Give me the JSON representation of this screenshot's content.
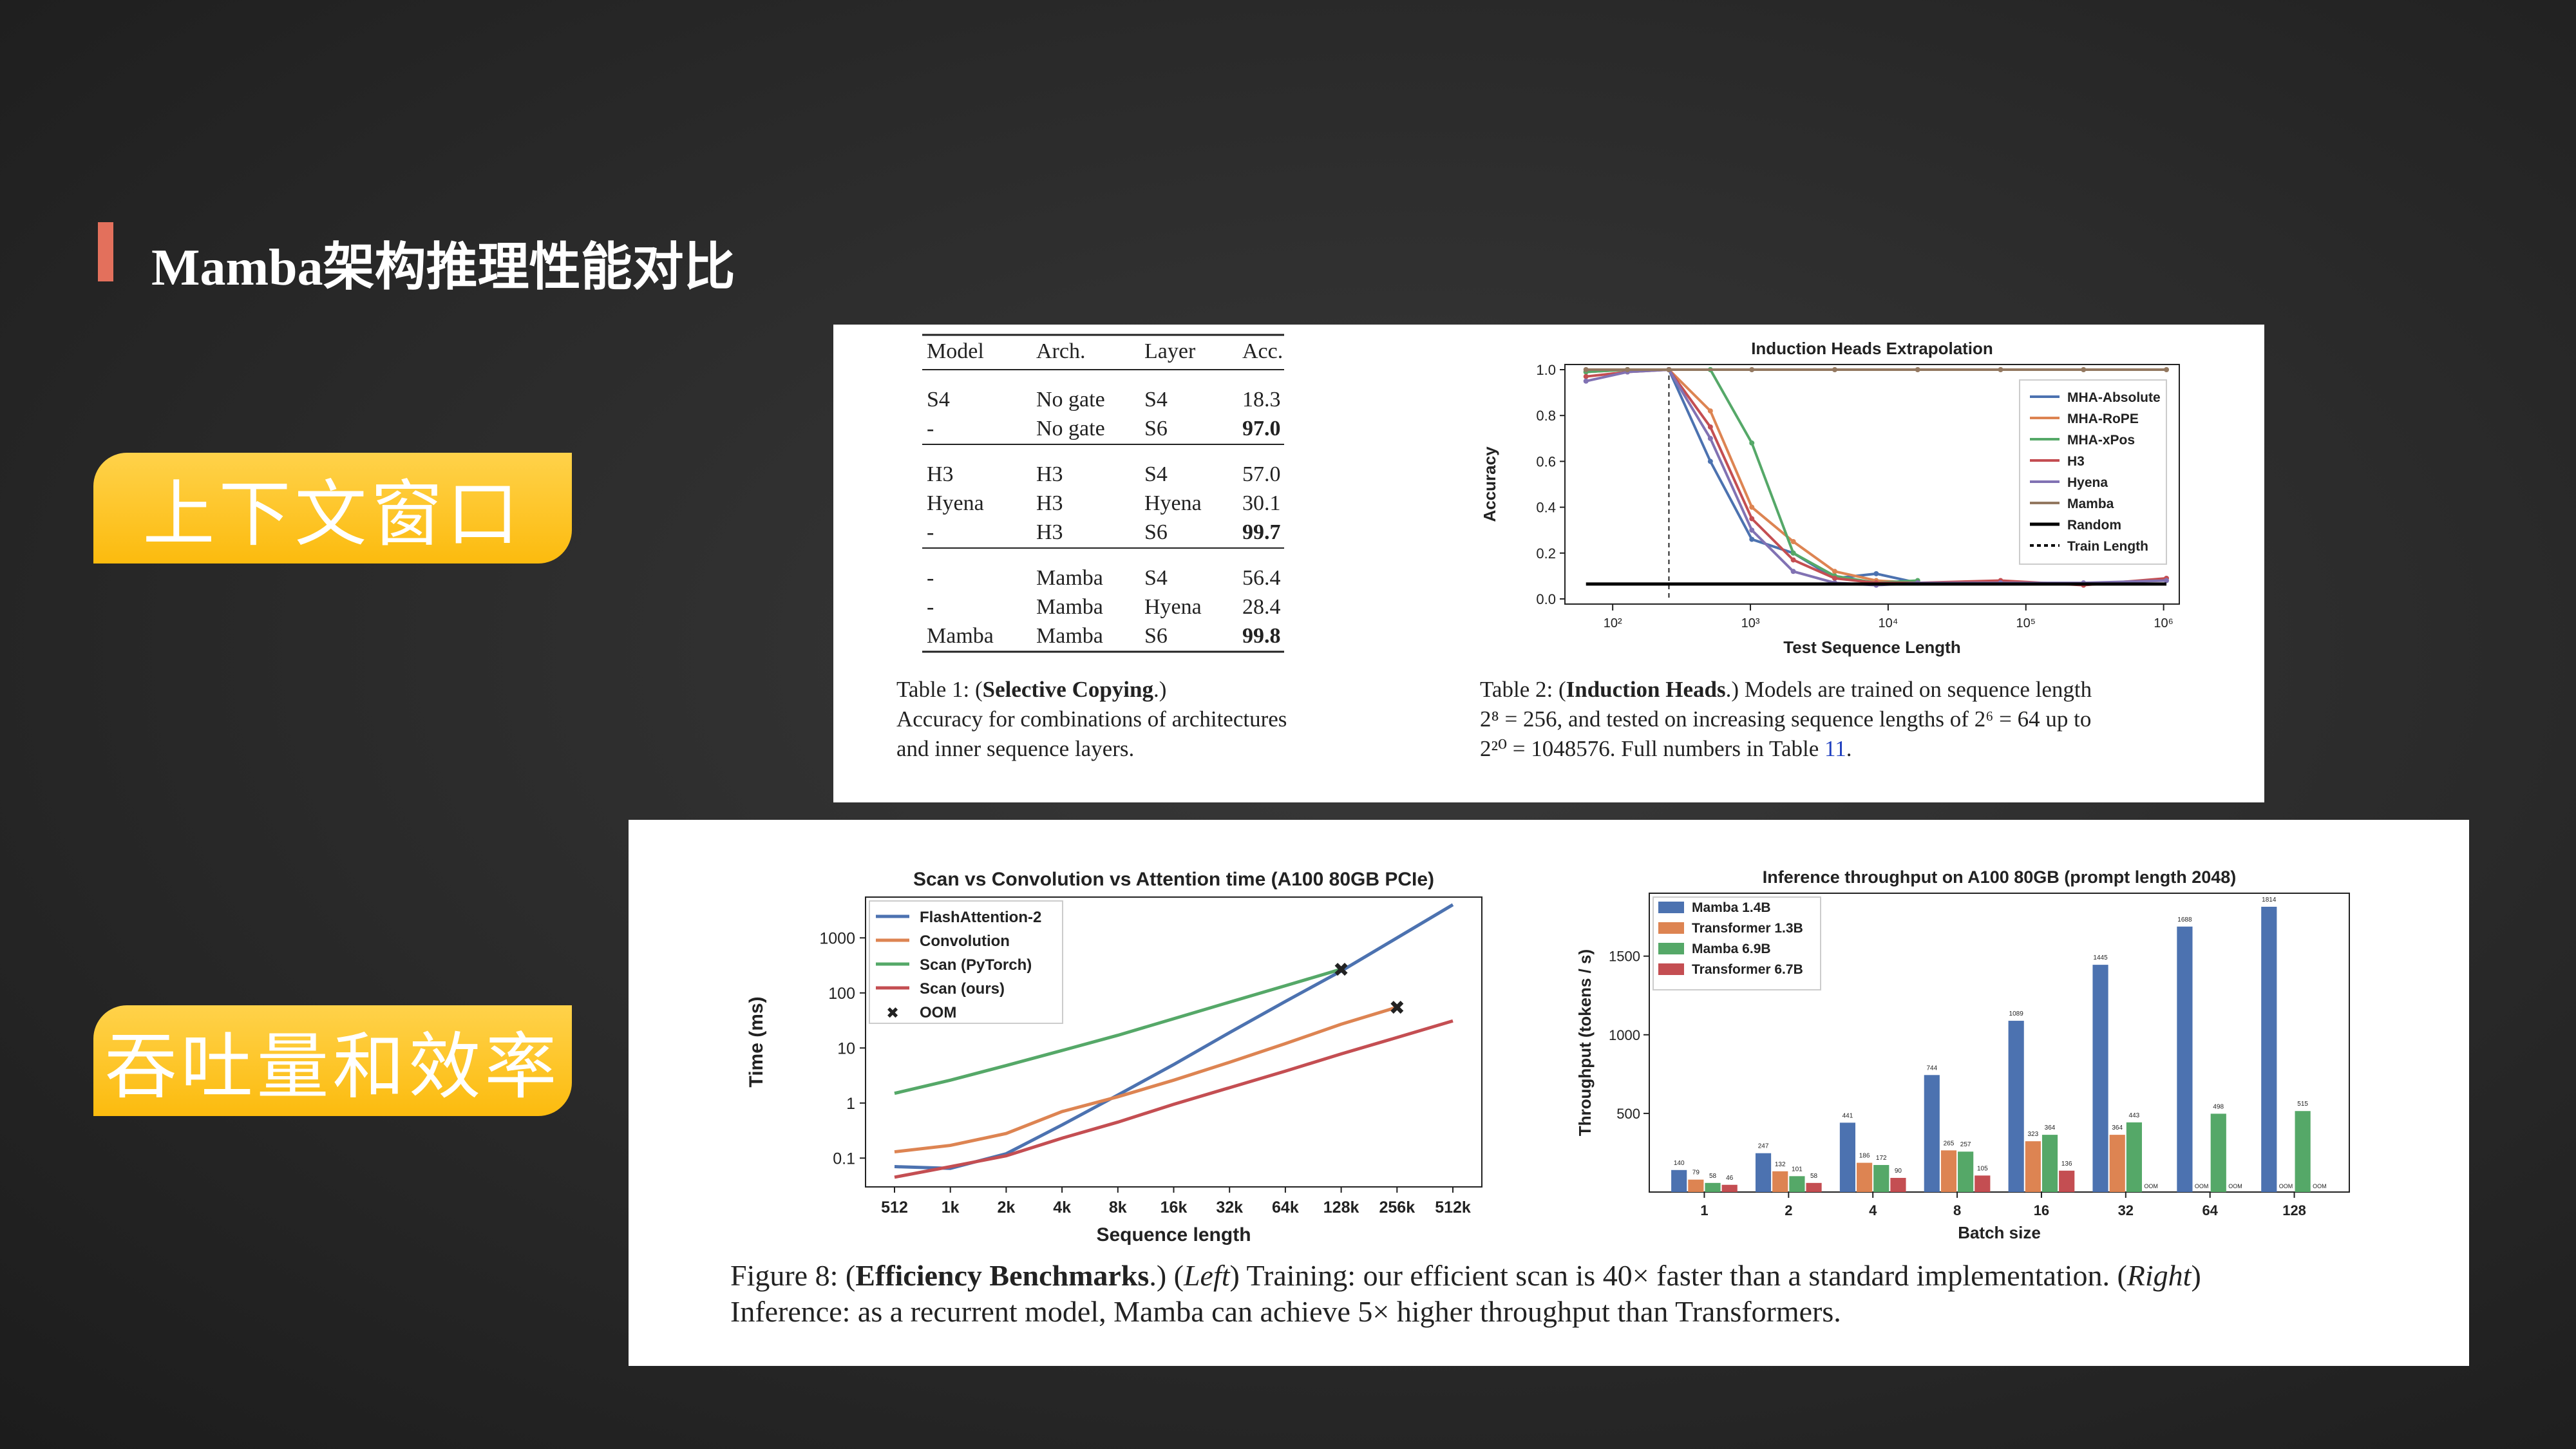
{
  "slide": {
    "title": "Mamba架构推理性能对比",
    "buttons": [
      "上下文窗口",
      "吞吐量和效率"
    ]
  },
  "table1": {
    "headers": [
      "Model",
      "Arch.",
      "Layer",
      "Acc."
    ],
    "groups": [
      [
        [
          "S4",
          "No gate",
          "S4",
          "18.3",
          false
        ],
        [
          "-",
          "No gate",
          "S6",
          "97.0",
          true
        ]
      ],
      [
        [
          "H3",
          "H3",
          "S4",
          "57.0",
          false
        ],
        [
          "Hyena",
          "H3",
          "Hyena",
          "30.1",
          false
        ],
        [
          "-",
          "H3",
          "S6",
          "99.7",
          true
        ]
      ],
      [
        [
          "-",
          "Mamba",
          "S4",
          "56.4",
          false
        ],
        [
          "-",
          "Mamba",
          "Hyena",
          "28.4",
          false
        ],
        [
          "Mamba",
          "Mamba",
          "S6",
          "99.8",
          true
        ]
      ]
    ],
    "caption_prefix": "Table 1: (",
    "caption_bold": "Selective Copying",
    "caption_suffix": ".)",
    "caption_line2": "Accuracy for combinations of architectures",
    "caption_line3": "and inner sequence layers."
  },
  "table2_caption": {
    "line1_prefix": "Table 2: (",
    "line1_bold": "Induction Heads",
    "line1_suffix": ".) Models are trained on sequence length",
    "line2": "2⁸ = 256, and tested on increasing sequence lengths of 2⁶ = 64 up to",
    "line3_prefix": "2²⁰ = 1048576. Full numbers in Table ",
    "line3_link": "11",
    "line3_suffix": "."
  },
  "figure8_caption": {
    "prefix": "Figure 8: (",
    "bold": "Efficiency Benchmarks",
    "after_bold": ".) (",
    "left": "Left",
    "middle": ") Training: our efficient scan is 40× faster than a standard implementation. (",
    "right": "Right",
    "end": ")",
    "line2": "Inference: as a recurrent model, Mamba can achieve 5× higher throughput than Transformers."
  },
  "chart_data": [
    {
      "type": "line",
      "title": "Induction Heads Extrapolation",
      "xlabel": "Test Sequence Length",
      "ylabel": "Accuracy",
      "xscale": "log",
      "xlim": [
        45,
        1300000
      ],
      "ylim": [
        0,
        1.0
      ],
      "xticks": [
        "10²",
        "10³",
        "10⁴",
        "10⁵",
        "10⁶"
      ],
      "yticks": [
        "0.0",
        "0.2",
        "0.4",
        "0.6",
        "0.8",
        "1.0"
      ],
      "legend_position": "right",
      "train_length": 256,
      "series": [
        {
          "name": "MHA-Absolute",
          "color": "#4c72b0",
          "x": [
            64,
            128,
            256,
            512,
            1024,
            2048,
            4096,
            8192,
            16384
          ],
          "y": [
            0.99,
            1.0,
            1.0,
            0.6,
            0.26,
            0.2,
            0.09,
            0.11,
            0.07
          ]
        },
        {
          "name": "MHA-RoPE",
          "color": "#dd8452",
          "x": [
            64,
            128,
            256,
            512,
            1024,
            2048,
            4096,
            8192,
            16384
          ],
          "y": [
            0.99,
            1.0,
            1.0,
            0.82,
            0.4,
            0.25,
            0.12,
            0.08,
            0.07
          ]
        },
        {
          "name": "MHA-xPos",
          "color": "#55a868",
          "x": [
            64,
            128,
            256,
            512,
            1024,
            2048,
            4096,
            8192,
            16384
          ],
          "y": [
            0.99,
            1.0,
            1.0,
            1.0,
            0.68,
            0.2,
            0.1,
            0.07,
            0.08
          ]
        },
        {
          "name": "H3",
          "color": "#c44e52",
          "x": [
            64,
            128,
            256,
            512,
            1024,
            2048,
            4096,
            8192,
            16384,
            65536,
            262144,
            1048576
          ],
          "y": [
            0.97,
            0.99,
            1.0,
            0.75,
            0.35,
            0.17,
            0.09,
            0.07,
            0.07,
            0.08,
            0.06,
            0.09
          ]
        },
        {
          "name": "Hyena",
          "color": "#8172b3",
          "x": [
            64,
            128,
            256,
            512,
            1024,
            2048,
            4096,
            8192,
            16384,
            65536,
            262144,
            1048576
          ],
          "y": [
            0.95,
            0.99,
            1.0,
            0.7,
            0.3,
            0.12,
            0.07,
            0.06,
            0.07,
            0.07,
            0.07,
            0.08
          ]
        },
        {
          "name": "Mamba",
          "color": "#937860",
          "x": [
            64,
            128,
            256,
            1024,
            4096,
            16384,
            65536,
            262144,
            1048576
          ],
          "y": [
            1.0,
            1.0,
            1.0,
            1.0,
            1.0,
            1.0,
            1.0,
            1.0,
            1.0
          ]
        },
        {
          "name": "Random",
          "color": "#000000",
          "x": [
            64,
            1048576
          ],
          "y": [
            0.065,
            0.065
          ]
        },
        {
          "name": "Train Length",
          "color": "#000000",
          "dashed": true
        }
      ]
    },
    {
      "type": "line",
      "title": "Scan vs Convolution vs Attention time (A100 80GB PCIe)",
      "xlabel": "Sequence length",
      "ylabel": "Time (ms)",
      "yscale": "log",
      "categories": [
        "512",
        "1k",
        "2k",
        "4k",
        "8k",
        "16k",
        "32k",
        "64k",
        "128k",
        "256k",
        "512k"
      ],
      "yticks": [
        "0.1",
        "1",
        "10",
        "100",
        "1000"
      ],
      "legend_position": "top-left",
      "series": [
        {
          "name": "FlashAttention-2",
          "color": "#4c72b0",
          "values": [
            0.07,
            0.065,
            0.12,
            0.4,
            1.4,
            5.0,
            19,
            70,
            250,
            1000,
            4000
          ]
        },
        {
          "name": "Convolution",
          "color": "#dd8452",
          "values": [
            0.13,
            0.17,
            0.28,
            0.7,
            1.3,
            2.6,
            5.5,
            12,
            27,
            55,
            null
          ]
        },
        {
          "name": "Scan (PyTorch)",
          "color": "#55a868",
          "values": [
            1.5,
            2.6,
            4.8,
            9,
            17,
            34,
            68,
            135,
            270,
            null,
            null
          ]
        },
        {
          "name": "Scan (ours)",
          "color": "#c44e52",
          "values": [
            0.045,
            0.07,
            0.11,
            0.23,
            0.45,
            0.95,
            1.9,
            3.8,
            7.8,
            15.5,
            31
          ]
        }
      ],
      "oom": [
        {
          "series": "Scan (PyTorch)",
          "x": "128k"
        },
        {
          "series": "Convolution",
          "x": "256k"
        }
      ],
      "legend_oom_label": "OOM"
    },
    {
      "type": "bar",
      "title": "Inference throughput on A100 80GB (prompt length 2048)",
      "xlabel": "Batch size",
      "ylabel": "Throughput (tokens / s)",
      "categories": [
        "1",
        "2",
        "4",
        "8",
        "16",
        "32",
        "64",
        "128"
      ],
      "ylim": [
        0,
        1900
      ],
      "yticks": [
        "500",
        "1000",
        "1500"
      ],
      "legend_position": "top-left",
      "series": [
        {
          "name": "Mamba 1.4B",
          "color": "#4c72b0",
          "values": [
            140,
            247,
            441,
            744,
            1089,
            1445,
            1688,
            1814
          ]
        },
        {
          "name": "Transformer 1.3B",
          "color": "#dd8452",
          "values": [
            79,
            132,
            186,
            265,
            323,
            364,
            null,
            null
          ]
        },
        {
          "name": "Mamba 6.9B",
          "color": "#55a868",
          "values": [
            58,
            101,
            172,
            257,
            364,
            443,
            498,
            515
          ]
        },
        {
          "name": "Transformer 6.7B",
          "color": "#c44e52",
          "values": [
            46,
            58,
            90,
            105,
            136,
            null,
            null,
            null
          ]
        }
      ],
      "oom_label": "OOM"
    }
  ]
}
